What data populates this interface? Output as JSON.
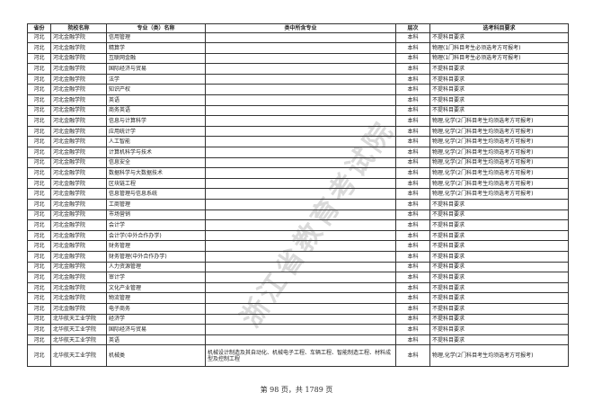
{
  "headers": [
    "省份",
    "院校名称",
    "专业（类）名称",
    "类中所含专业",
    "层次",
    "选考科目要求"
  ],
  "rows": [
    [
      "河北",
      "河北金融学院",
      "信用管理",
      "",
      "本科",
      "不提科目要求"
    ],
    [
      "河北",
      "河北金融学院",
      "精算学",
      "",
      "本科",
      "物理(1门科目考生必须选考方可报考)"
    ],
    [
      "河北",
      "河北金融学院",
      "互联网金融",
      "",
      "本科",
      "物理(1门科目考生必须选考方可报考)"
    ],
    [
      "河北",
      "河北金融学院",
      "国际经济与贸易",
      "",
      "本科",
      "不提科目要求"
    ],
    [
      "河北",
      "河北金融学院",
      "法学",
      "",
      "本科",
      "不提科目要求"
    ],
    [
      "河北",
      "河北金融学院",
      "知识产权",
      "",
      "本科",
      "不提科目要求"
    ],
    [
      "河北",
      "河北金融学院",
      "英语",
      "",
      "本科",
      "不提科目要求"
    ],
    [
      "河北",
      "河北金融学院",
      "商务英语",
      "",
      "本科",
      "不提科目要求"
    ],
    [
      "河北",
      "河北金融学院",
      "信息与计算科学",
      "",
      "本科",
      "物理,化学(2门科目考生均须选考方可报考)"
    ],
    [
      "河北",
      "河北金融学院",
      "应用统计学",
      "",
      "本科",
      "物理,化学(2门科目考生均须选考方可报考)"
    ],
    [
      "河北",
      "河北金融学院",
      "人工智能",
      "",
      "本科",
      "物理,化学(2门科目考生均须选考方可报考)"
    ],
    [
      "河北",
      "河北金融学院",
      "计算机科学与技术",
      "",
      "本科",
      "物理,化学(2门科目考生均须选考方可报考)"
    ],
    [
      "河北",
      "河北金融学院",
      "信息安全",
      "",
      "本科",
      "物理,化学(2门科目考生均须选考方可报考)"
    ],
    [
      "河北",
      "河北金融学院",
      "数据科学与大数据技术",
      "",
      "本科",
      "物理,化学(2门科目考生均须选考方可报考)"
    ],
    [
      "河北",
      "河北金融学院",
      "区块链工程",
      "",
      "本科",
      "物理,化学(2门科目考生均须选考方可报考)"
    ],
    [
      "河北",
      "河北金融学院",
      "信息管理与信息系统",
      "",
      "本科",
      "物理,化学(2门科目考生均须选考方可报考)"
    ],
    [
      "河北",
      "河北金融学院",
      "工商管理",
      "",
      "本科",
      "不提科目要求"
    ],
    [
      "河北",
      "河北金融学院",
      "市场营销",
      "",
      "本科",
      "不提科目要求"
    ],
    [
      "河北",
      "河北金融学院",
      "会计学",
      "",
      "本科",
      "不提科目要求"
    ],
    [
      "河北",
      "河北金融学院",
      "会计学(中外合作办学)",
      "",
      "本科",
      "不提科目要求"
    ],
    [
      "河北",
      "河北金融学院",
      "财务管理",
      "",
      "本科",
      "不提科目要求"
    ],
    [
      "河北",
      "河北金融学院",
      "财务管理(中外合作办学)",
      "",
      "本科",
      "不提科目要求"
    ],
    [
      "河北",
      "河北金融学院",
      "人力资源管理",
      "",
      "本科",
      "不提科目要求"
    ],
    [
      "河北",
      "河北金融学院",
      "审计学",
      "",
      "本科",
      "不提科目要求"
    ],
    [
      "河北",
      "河北金融学院",
      "文化产业管理",
      "",
      "本科",
      "不提科目要求"
    ],
    [
      "河北",
      "河北金融学院",
      "物流管理",
      "",
      "本科",
      "不提科目要求"
    ],
    [
      "河北",
      "河北金融学院",
      "电子商务",
      "",
      "本科",
      "不提科目要求"
    ],
    [
      "河北",
      "北华航天工业学院",
      "经济学",
      "",
      "本科",
      "不提科目要求"
    ],
    [
      "河北",
      "北华航天工业学院",
      "国际经济与贸易",
      "",
      "本科",
      "不提科目要求"
    ],
    [
      "河北",
      "北华航天工业学院",
      "英语",
      "",
      "本科",
      "不提科目要求"
    ],
    [
      "河北",
      "北华航天工业学院",
      "机械类",
      "机械设计制造及其自动化、机械电子工程、车辆工程、智能制造工程、材料成型及控制工程",
      "本科",
      "物理,化学(2门科目考生均须选考方可报考)"
    ]
  ],
  "footer": "第 98 页，共 1789 页",
  "watermark": "浙江省教育考试院"
}
